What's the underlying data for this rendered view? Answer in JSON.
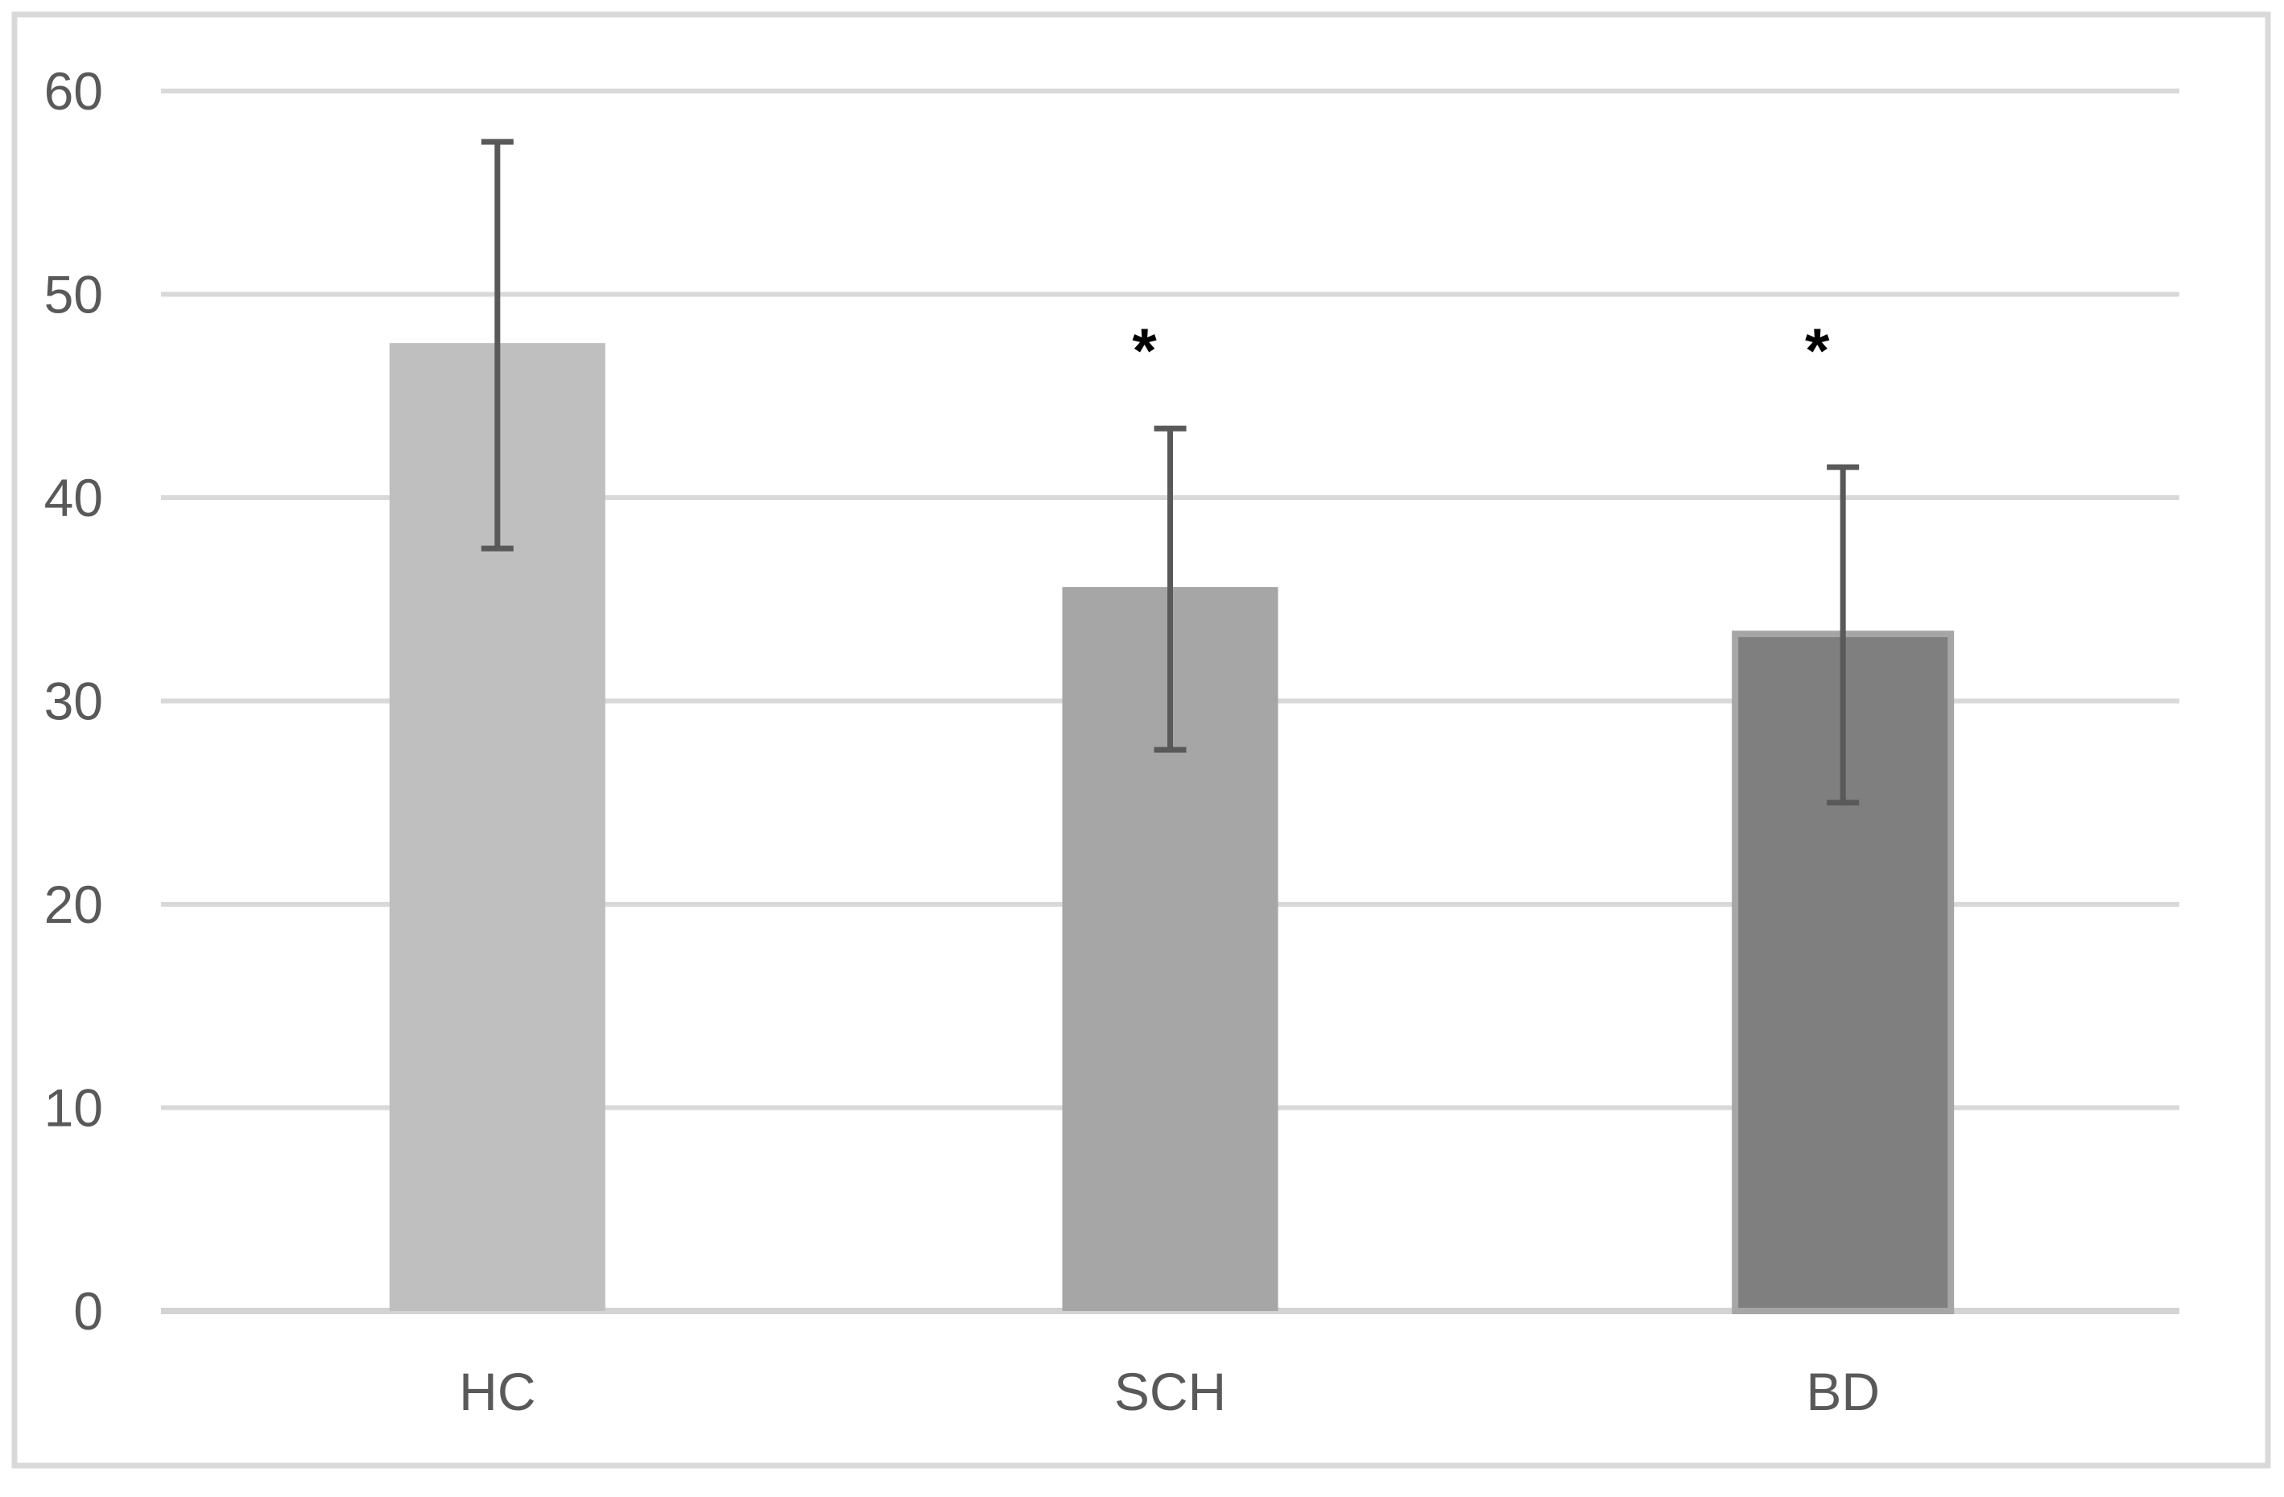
{
  "chart_data": {
    "type": "bar",
    "title": "",
    "xlabel": "",
    "ylabel": "",
    "categories": [
      "HC",
      "SCH",
      "BD"
    ],
    "values": [
      47.6,
      35.6,
      33.3
    ],
    "error_upper": [
      57.5,
      43.4,
      41.5
    ],
    "error_lower": [
      37.5,
      27.6,
      25.0
    ],
    "significance_markers": [
      "",
      "*",
      "*"
    ],
    "ylim": [
      0,
      60
    ],
    "yticks": [
      0,
      10,
      20,
      30,
      40,
      50,
      60
    ],
    "ytick_labels": [
      "0",
      "10",
      "20",
      "30",
      "40",
      "50",
      "60"
    ],
    "grid": true,
    "legend": false,
    "bar_fill_colors": [
      "#bfbfbf",
      "#a6a6a6",
      "#7f7f7f"
    ],
    "bar_border_colors": [
      "",
      "",
      "#a6a6a6"
    ]
  },
  "style": {
    "background_color": "#ffffff",
    "chart_border_color": "#d9d9d9",
    "gridline_color": "#d9d9d9",
    "baseline_color": "#d3d3d3",
    "axis_text_color": "#595959",
    "error_bar_color": "#595959",
    "marker_color": "#000000"
  }
}
